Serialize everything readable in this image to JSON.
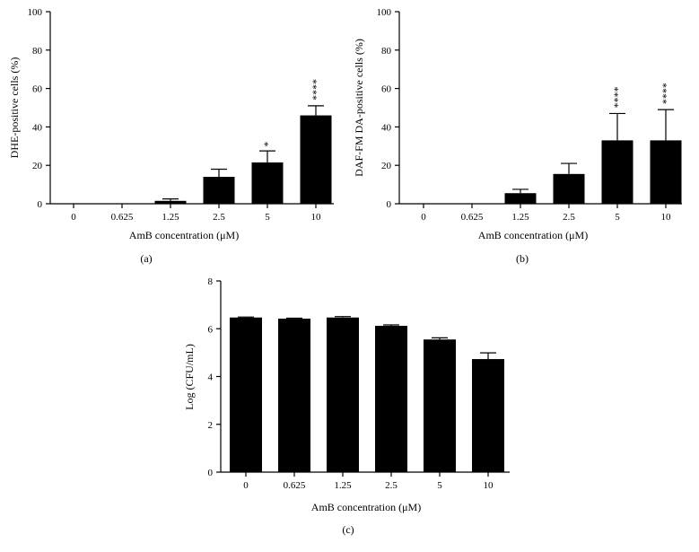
{
  "chart_data": [
    {
      "type": "bar",
      "panel_label": "(a)",
      "xlabel": "AmB concentration (μM)",
      "ylabel": "DHE-positive cells (%)",
      "categories": [
        "0",
        "0.625",
        "1.25",
        "2.5",
        "5",
        "10"
      ],
      "values": [
        0,
        0,
        1.5,
        14,
        21.5,
        46
      ],
      "errors": [
        0,
        0,
        1,
        4,
        6,
        5
      ],
      "annotations": [
        "",
        "",
        "",
        "",
        "*",
        "****"
      ],
      "ylim": [
        0,
        100
      ],
      "yticks": [
        "0",
        "20",
        "40",
        "60",
        "80",
        "100"
      ],
      "grid": false,
      "bar_color": "#000000"
    },
    {
      "type": "bar",
      "panel_label": "(b)",
      "xlabel": "AmB concentration (μM)",
      "ylabel": "DAF-FM DA-positive cells (%)",
      "categories": [
        "0",
        "0.625",
        "1.25",
        "2.5",
        "5",
        "10"
      ],
      "values": [
        0,
        0,
        5.5,
        15.5,
        33,
        33
      ],
      "errors": [
        0,
        0,
        2,
        5.5,
        14,
        16
      ],
      "annotations": [
        "",
        "",
        "",
        "",
        "****",
        "****"
      ],
      "ylim": [
        0,
        100
      ],
      "yticks": [
        "0",
        "20",
        "40",
        "60",
        "80",
        "100"
      ],
      "grid": false,
      "bar_color": "#000000"
    },
    {
      "type": "bar",
      "panel_label": "(c)",
      "xlabel": "AmB concentration (μM)",
      "ylabel": "Log (CFU/mL)",
      "categories": [
        "0",
        "0.625",
        "1.25",
        "2.5",
        "5",
        "10"
      ],
      "values": [
        6.47,
        6.42,
        6.47,
        6.12,
        5.55,
        4.73
      ],
      "errors": [
        0.02,
        0.02,
        0.04,
        0.04,
        0.07,
        0.26
      ],
      "annotations": [
        "",
        "",
        "",
        "",
        "",
        ""
      ],
      "ylim": [
        0,
        8
      ],
      "yticks": [
        "0",
        "2",
        "4",
        "6",
        "8"
      ],
      "grid": false,
      "bar_color": "#000000"
    }
  ]
}
